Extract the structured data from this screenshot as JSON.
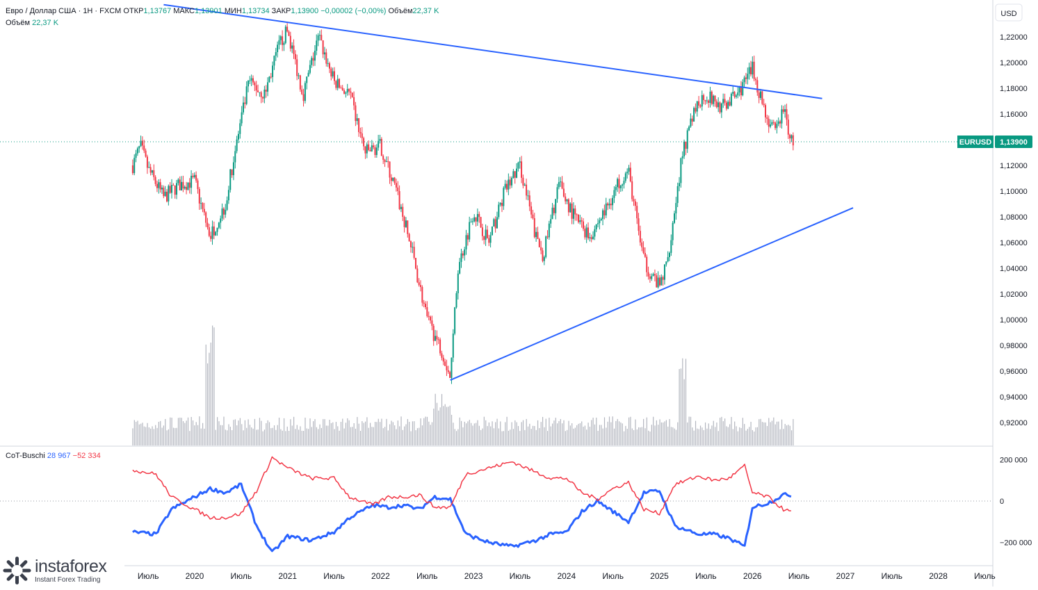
{
  "header": {
    "symbol_name": "Евро / Доллар США",
    "timeframe": "1Н",
    "exchange": "FXCM",
    "open_label": "ОТКР",
    "open": "1,13767",
    "high_label": "МАКС",
    "high": "1,13901",
    "low_label": "МИН",
    "low": "1,13734",
    "close_label": "ЗАКР",
    "close": "1,13900",
    "change": "−0,00002 (−0,00%)",
    "volume_label": "Объём",
    "volume": "22,37 K",
    "volume_row_label": "Объём",
    "volume_row_value": "22,37 K"
  },
  "price_scale": {
    "currency": "USD",
    "ticks": [
      "1,22000",
      "1,20000",
      "1,18000",
      "1,16000",
      "1,12000",
      "1,10000",
      "1,08000",
      "1,06000",
      "1,04000",
      "1,02000",
      "1,00000",
      "0,98000",
      "0,96000",
      "0,94000",
      "0,92000"
    ]
  },
  "price_tag": {
    "symbol": "EURUSD",
    "value": "1,13900",
    "color": "#089981"
  },
  "indicator": {
    "name": "CoT-Buschi",
    "value_long": "28 967",
    "value_short": "−52 334",
    "ticks": [
      "200 000",
      "0",
      "−200 000"
    ]
  },
  "time_axis": [
    "Июль",
    "2020",
    "Июль",
    "2021",
    "Июль",
    "2022",
    "Июль",
    "2023",
    "Июль",
    "2024",
    "Июль",
    "2025",
    "Июль",
    "2026",
    "Июль",
    "2027",
    "Июль",
    "2028",
    "Июль"
  ],
  "colors": {
    "up": "#089981",
    "down": "#f23645",
    "trendline": "#2962ff",
    "cot_long": "#2962ff",
    "cot_short": "#f23645"
  },
  "logo": {
    "brand": "instaforex",
    "tagline": "Instant Forex Trading"
  },
  "chart_data": [
    {
      "type": "candlestick",
      "title": "Евро / Доллар США",
      "ylabel": "USD",
      "ylim": [
        0.91,
        1.245
      ],
      "y_scale": "linear",
      "grid": false,
      "series": [
        {
          "name": "EURUSD",
          "last": 1.139
        }
      ],
      "price_path": [
        [
          "2019-05",
          1.12
        ],
        [
          "2019-06",
          1.135
        ],
        [
          "2019-07",
          1.117
        ],
        [
          "2019-09",
          1.095
        ],
        [
          "2019-11",
          1.105
        ],
        [
          "2020-01",
          1.108
        ],
        [
          "2020-02",
          1.085
        ],
        [
          "2020-03",
          1.065
        ],
        [
          "2020-05",
          1.09
        ],
        [
          "2020-06",
          1.125
        ],
        [
          "2020-08",
          1.185
        ],
        [
          "2020-10",
          1.175
        ],
        [
          "2020-12",
          1.215
        ],
        [
          "2021-01",
          1.225
        ],
        [
          "2021-03",
          1.175
        ],
        [
          "2021-05",
          1.22
        ],
        [
          "2021-07",
          1.185
        ],
        [
          "2021-09",
          1.175
        ],
        [
          "2021-11",
          1.13
        ],
        [
          "2022-01",
          1.135
        ],
        [
          "2022-03",
          1.1
        ],
        [
          "2022-05",
          1.055
        ],
        [
          "2022-07",
          1.0
        ],
        [
          "2022-09",
          0.975
        ],
        [
          "2022-10",
          0.955
        ],
        [
          "2022-11",
          1.04
        ],
        [
          "2023-01",
          1.085
        ],
        [
          "2023-03",
          1.06
        ],
        [
          "2023-05",
          1.1
        ],
        [
          "2023-07",
          1.12
        ],
        [
          "2023-09",
          1.065
        ],
        [
          "2023-10",
          1.05
        ],
        [
          "2023-12",
          1.105
        ],
        [
          "2024-02",
          1.08
        ],
        [
          "2024-04",
          1.065
        ],
        [
          "2024-06",
          1.085
        ],
        [
          "2024-08",
          1.11
        ],
        [
          "2024-09",
          1.115
        ],
        [
          "2024-11",
          1.045
        ],
        [
          "2025-01",
          1.025
        ],
        [
          "2025-02",
          1.045
        ],
        [
          "2025-04",
          1.13
        ],
        [
          "2025-06",
          1.17
        ],
        [
          "2025-07",
          1.175
        ],
        [
          "2025-09",
          1.165
        ],
        [
          "2025-11",
          1.175
        ],
        [
          "2026-01",
          1.195
        ],
        [
          "2026-02",
          1.175
        ],
        [
          "2026-03",
          1.155
        ],
        [
          "2026-04",
          1.145
        ],
        [
          "2026-05",
          1.165
        ],
        [
          "2026-06",
          1.139
        ]
      ],
      "trendlines": [
        {
          "name": "",
          "points": [
            [
              "2019-09",
              1.245
            ],
            [
              "2026-10",
              1.172
            ]
          ]
        },
        {
          "name": "",
          "points": [
            [
              "2022-10",
              0.953
            ],
            [
              "2027-02",
              1.087
            ]
          ]
        }
      ],
      "annotations": [
        "EURUSD 1,13900"
      ]
    },
    {
      "type": "line",
      "title": "CoT-Buschi",
      "ylim": [
        -270000,
        230000
      ],
      "series": [
        {
          "name": "",
          "color": "#2962ff",
          "last": 28967,
          "values": [
            [
              "2019-05",
              -150000
            ],
            [
              "2019-08",
              -160000
            ],
            [
              "2019-10",
              -40000
            ],
            [
              "2020-01",
              20000
            ],
            [
              "2020-03",
              60000
            ],
            [
              "2020-05",
              40000
            ],
            [
              "2020-07",
              80000
            ],
            [
              "2020-09",
              -120000
            ],
            [
              "2020-11",
              -250000
            ],
            [
              "2021-01",
              -170000
            ],
            [
              "2021-04",
              -190000
            ],
            [
              "2021-07",
              -150000
            ],
            [
              "2021-09",
              -80000
            ],
            [
              "2021-12",
              -20000
            ],
            [
              "2022-02",
              -30000
            ],
            [
              "2022-04",
              -20000
            ],
            [
              "2022-06",
              -40000
            ],
            [
              "2022-08",
              20000
            ],
            [
              "2022-10",
              10000
            ],
            [
              "2022-12",
              -160000
            ],
            [
              "2023-03",
              -200000
            ],
            [
              "2023-06",
              -220000
            ],
            [
              "2023-09",
              -190000
            ],
            [
              "2023-11",
              -160000
            ],
            [
              "2024-01",
              -150000
            ],
            [
              "2024-03",
              -50000
            ],
            [
              "2024-05",
              0
            ],
            [
              "2024-07",
              -50000
            ],
            [
              "2024-09",
              -100000
            ],
            [
              "2024-11",
              40000
            ],
            [
              "2025-01",
              50000
            ],
            [
              "2025-03",
              -120000
            ],
            [
              "2025-06",
              -160000
            ],
            [
              "2025-08",
              -160000
            ],
            [
              "2025-10",
              -180000
            ],
            [
              "2025-12",
              -220000
            ],
            [
              "2026-01",
              -30000
            ],
            [
              "2026-03",
              -10000
            ],
            [
              "2026-05",
              30000
            ],
            [
              "2026-06",
              28967
            ]
          ]
        },
        {
          "name": "",
          "color": "#f23645",
          "last": -52334,
          "values": [
            [
              "2019-05",
              150000
            ],
            [
              "2019-08",
              130000
            ],
            [
              "2019-10",
              20000
            ],
            [
              "2020-01",
              -40000
            ],
            [
              "2020-03",
              -80000
            ],
            [
              "2020-05",
              -80000
            ],
            [
              "2020-07",
              -60000
            ],
            [
              "2020-09",
              50000
            ],
            [
              "2020-11",
              210000
            ],
            [
              "2021-01",
              160000
            ],
            [
              "2021-04",
              110000
            ],
            [
              "2021-07",
              110000
            ],
            [
              "2021-09",
              20000
            ],
            [
              "2021-12",
              -20000
            ],
            [
              "2022-02",
              20000
            ],
            [
              "2022-04",
              20000
            ],
            [
              "2022-06",
              30000
            ],
            [
              "2022-08",
              -30000
            ],
            [
              "2022-10",
              -30000
            ],
            [
              "2022-12",
              130000
            ],
            [
              "2023-03",
              160000
            ],
            [
              "2023-06",
              190000
            ],
            [
              "2023-09",
              140000
            ],
            [
              "2023-11",
              110000
            ],
            [
              "2024-01",
              110000
            ],
            [
              "2024-03",
              40000
            ],
            [
              "2024-05",
              10000
            ],
            [
              "2024-07",
              60000
            ],
            [
              "2024-09",
              90000
            ],
            [
              "2024-11",
              -40000
            ],
            [
              "2025-01",
              -60000
            ],
            [
              "2025-03",
              80000
            ],
            [
              "2025-06",
              120000
            ],
            [
              "2025-08",
              100000
            ],
            [
              "2025-10",
              110000
            ],
            [
              "2025-12",
              170000
            ],
            [
              "2026-01",
              40000
            ],
            [
              "2026-03",
              20000
            ],
            [
              "2026-05",
              -40000
            ],
            [
              "2026-06",
              -52334
            ]
          ]
        }
      ]
    }
  ]
}
